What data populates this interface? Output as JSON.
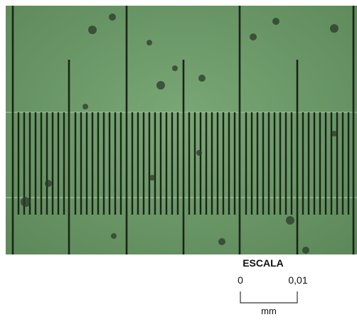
{
  "scale": {
    "title": "ESCALA",
    "start_label": "0",
    "end_label": "0,01",
    "unit": "mm"
  }
}
